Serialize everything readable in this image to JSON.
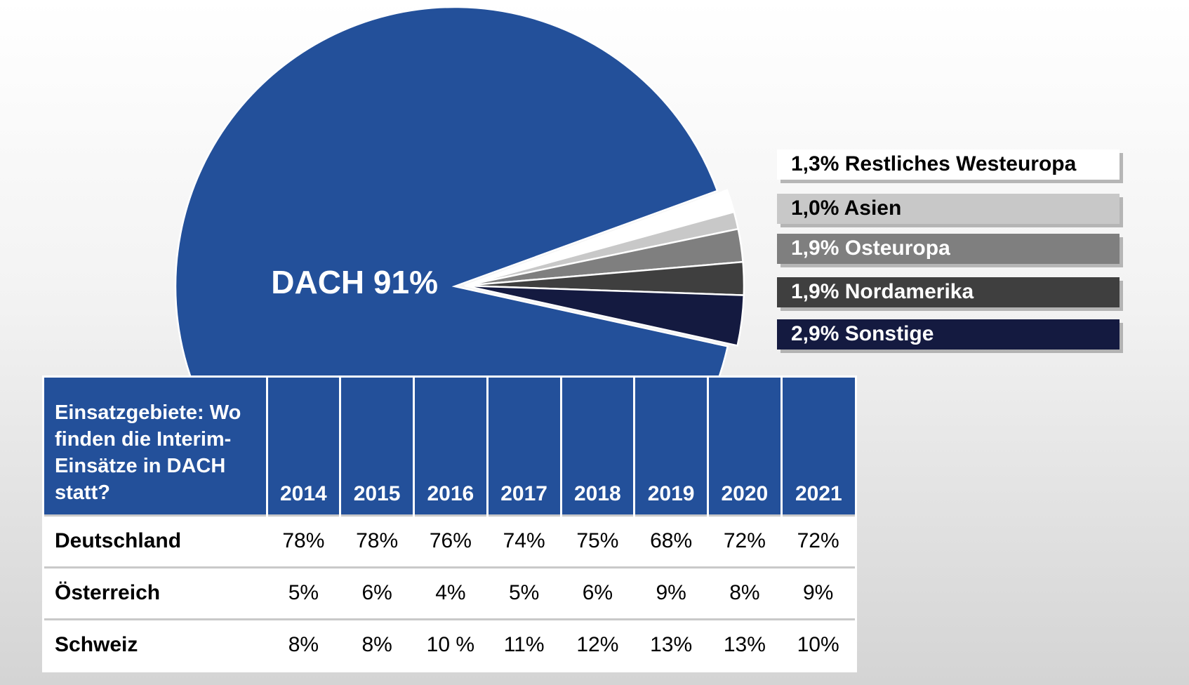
{
  "chart_data": {
    "type": "pie",
    "categories": [
      "DACH",
      "Restliches Westeuropa",
      "Asien",
      "Osteuropa",
      "Nordamerika",
      "Sonstige"
    ],
    "values": [
      91,
      1.3,
      1.0,
      1.9,
      1.9,
      2.9
    ],
    "value_labels": [
      "91%",
      "1,3%",
      "1,0%",
      "1,9%",
      "1,9%",
      "2,9%"
    ],
    "colors": [
      "#23509a",
      "#ffffff",
      "#c8c8c8",
      "#7f7f7f",
      "#3f3f3f",
      "#141a40"
    ]
  },
  "table": {
    "header": [
      "Einsatzgebiete: Wo finden die Interim-Einsätze in DACH statt?",
      "2014",
      "2015",
      "2016",
      "2017",
      "2018",
      "2019",
      "2020",
      "2021"
    ],
    "rows": [
      [
        "Deutschland",
        "78%",
        "78%",
        "76%",
        "74%",
        "75%",
        "68%",
        "72%",
        "72%"
      ],
      [
        "Österreich",
        "5%",
        "6%",
        "4%",
        "5%",
        "6%",
        "9%",
        "8%",
        "9%"
      ],
      [
        "Schweiz",
        "8%",
        "8%",
        "10 %",
        "11%",
        "12%",
        "13%",
        "13%",
        "10%"
      ]
    ]
  }
}
